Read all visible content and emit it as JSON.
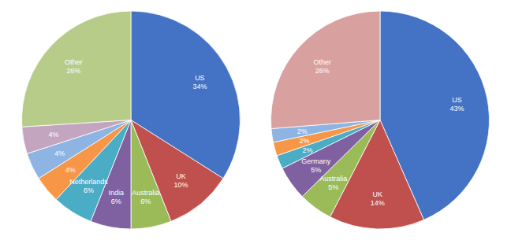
{
  "chart_data": [
    {
      "type": "pie",
      "categories": [
        "US",
        "UK",
        "Australia",
        "India",
        "Netherlands",
        null,
        null,
        null,
        "Other"
      ],
      "values": [
        34,
        10,
        6,
        6,
        6,
        4,
        4,
        4,
        26
      ],
      "value_labels": [
        "34%",
        "10%",
        "6%",
        "6%",
        "6%",
        "4%",
        "4%",
        "4%",
        "26%"
      ],
      "colors": [
        "#4472C4",
        "#C0504D",
        "#9BBB59",
        "#7F60A0",
        "#4BACC6",
        "#F79646",
        "#8EB4E3",
        "#C3A5C0",
        "#B8CC8A"
      ],
      "data_labels": true
    },
    {
      "type": "pie",
      "categories": [
        "US",
        "UK",
        "Australia",
        "Germany",
        null,
        null,
        null,
        "Other"
      ],
      "values": [
        43,
        14,
        5,
        5,
        2,
        2,
        2,
        26
      ],
      "value_labels": [
        "43%",
        "14%",
        "5%",
        "5%",
        "2%",
        "2%",
        "2%",
        "26%"
      ],
      "colors": [
        "#4472C4",
        "#C0504D",
        "#9BBB59",
        "#7F60A0",
        "#4BACC6",
        "#F79646",
        "#8EB4E3",
        "#D9A0A0"
      ],
      "data_labels": true
    }
  ]
}
